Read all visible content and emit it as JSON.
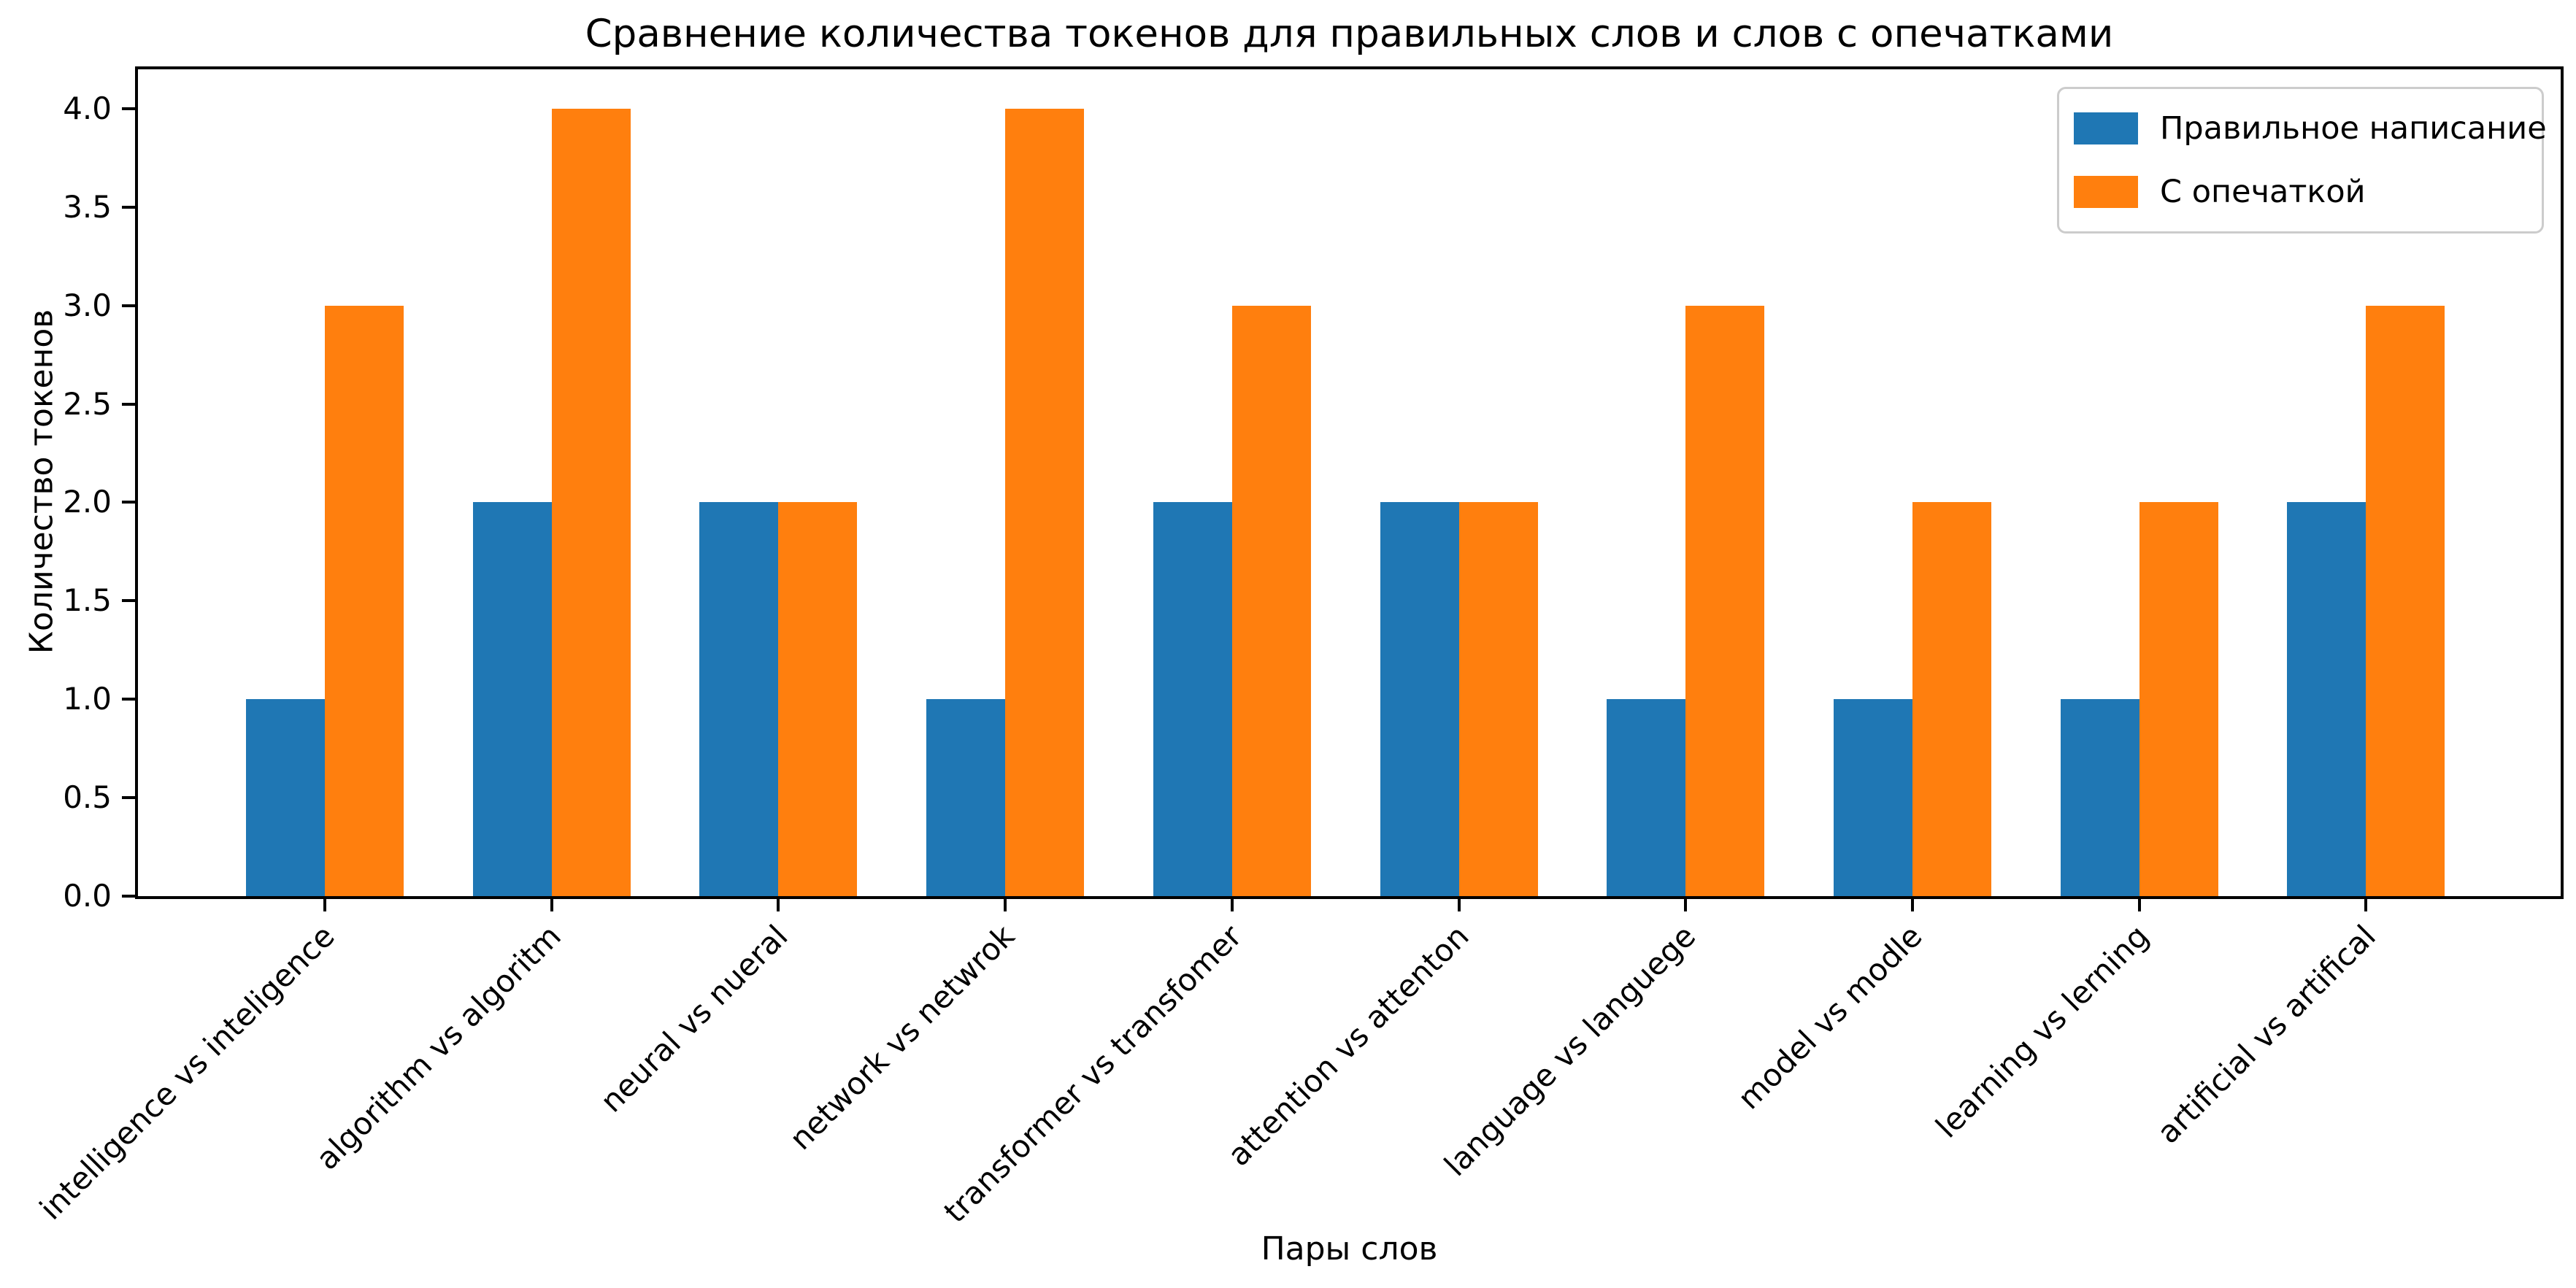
{
  "chart_data": {
    "type": "bar",
    "title": "Сравнение количества токенов для правильных слов и слов с опечатками",
    "xlabel": "Пары слов",
    "ylabel": "Количество токенов",
    "categories": [
      "intelligence vs inteligence",
      "algorithm vs algoritm",
      "neural vs nueral",
      "network vs netwrok",
      "transformer vs transfomer",
      "attention vs attenton",
      "language vs languege",
      "model vs modle",
      "learning vs lerning",
      "artificial vs artifical"
    ],
    "series": [
      {
        "name": "Правильное написание",
        "color": "#1f77b4",
        "values": [
          1,
          2,
          2,
          1,
          2,
          2,
          1,
          1,
          1,
          2
        ]
      },
      {
        "name": "С опечаткой",
        "color": "#ff7f0e",
        "values": [
          3,
          4,
          2,
          4,
          3,
          2,
          3,
          2,
          2,
          3
        ]
      }
    ],
    "ylim": [
      0,
      4.2
    ],
    "yticks": [
      0.0,
      0.5,
      1.0,
      1.5,
      2.0,
      2.5,
      3.0,
      3.5,
      4.0
    ],
    "ytick_labels": [
      "0.0",
      "0.5",
      "1.0",
      "1.5",
      "2.0",
      "2.5",
      "3.0",
      "3.5",
      "4.0"
    ],
    "x_tick_rotation": 45,
    "grid": false,
    "legend_position": "upper right",
    "bar_width_ratio": 0.35,
    "background": "#ffffff",
    "text_color": "#000000"
  }
}
